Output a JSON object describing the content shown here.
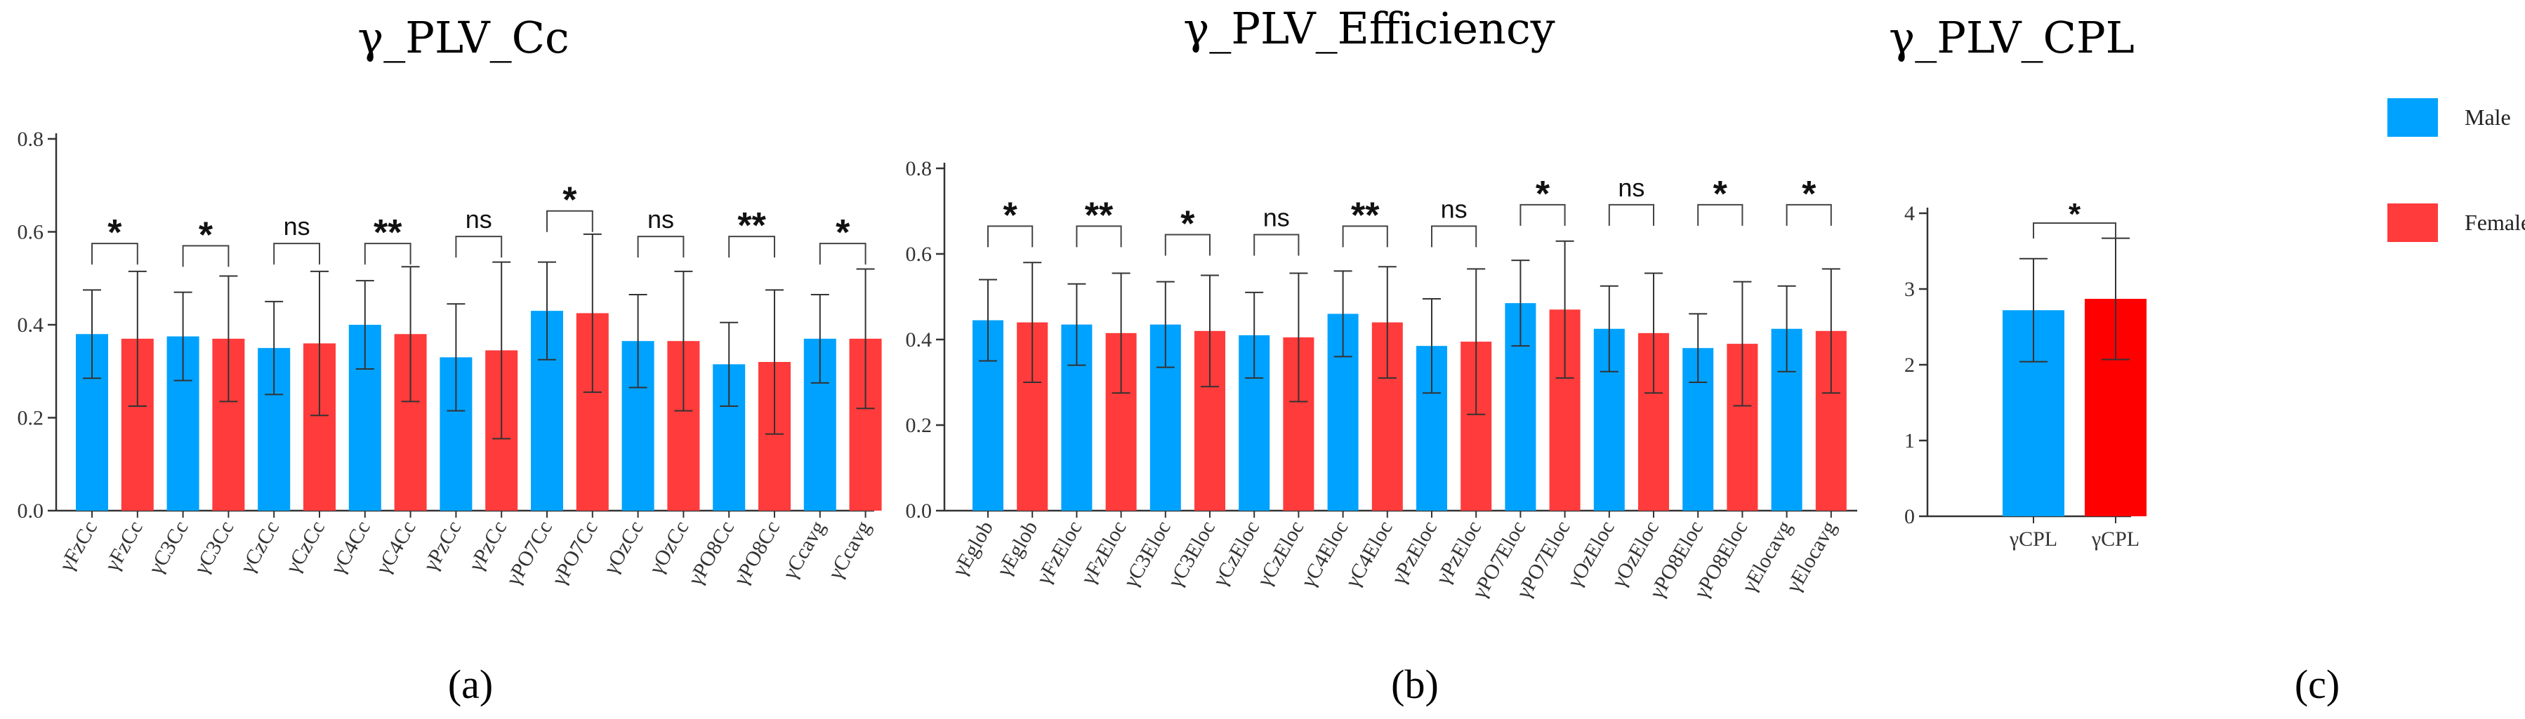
{
  "colors": {
    "male": "#00A2FF",
    "female": "#FF3B3B",
    "female_c": "#FF0000",
    "axis": "#333333",
    "bracket": "#444444"
  },
  "legend": {
    "items": [
      {
        "label": "Male",
        "color": "#00A2FF"
      },
      {
        "label": "Female",
        "color": "#FF3B3B"
      }
    ]
  },
  "chart_data": [
    {
      "type": "bar",
      "title": "γ_PLV_Cc",
      "panel_label": "(a)",
      "ylim": [
        0,
        0.8
      ],
      "yticks": [
        "0.0",
        "0.2",
        "0.4",
        "0.6",
        "0.8"
      ],
      "categories": [
        "γFzCc",
        "γFzCc",
        "γC3Cc",
        "γC3Cc",
        "γCzCc",
        "γCzCc",
        "γC4Cc",
        "γC4Cc",
        "γPzCc",
        "γPzCc",
        "γPO7Cc",
        "γPO7Cc",
        "γOzCc",
        "γOzCc",
        "γPO8Cc",
        "γPO8Cc",
        "γCcavg",
        "γCcavg"
      ],
      "groups": [
        "Male",
        "Female",
        "Male",
        "Female",
        "Male",
        "Female",
        "Male",
        "Female",
        "Male",
        "Female",
        "Male",
        "Female",
        "Male",
        "Female",
        "Male",
        "Female",
        "Male",
        "Female"
      ],
      "values": [
        0.38,
        0.37,
        0.375,
        0.37,
        0.35,
        0.36,
        0.4,
        0.38,
        0.33,
        0.345,
        0.43,
        0.425,
        0.365,
        0.365,
        0.315,
        0.32,
        0.37,
        0.37
      ],
      "errors": [
        0.095,
        0.145,
        0.095,
        0.135,
        0.1,
        0.155,
        0.095,
        0.145,
        0.115,
        0.19,
        0.105,
        0.17,
        0.1,
        0.15,
        0.09,
        0.155,
        0.095,
        0.15
      ],
      "significance": [
        "*",
        "*",
        "ns",
        "**",
        "ns",
        "*",
        "ns",
        "**",
        "*"
      ],
      "bracket_tops": [
        0.575,
        0.57,
        0.575,
        0.575,
        0.59,
        0.645,
        0.59,
        0.59,
        0.575
      ]
    },
    {
      "type": "bar",
      "title": "γ_PLV_Efficiency",
      "panel_label": "(b)",
      "ylim": [
        0,
        0.8
      ],
      "yticks": [
        "0.0",
        "0.2",
        "0.4",
        "0.6",
        "0.8"
      ],
      "categories": [
        "γEglob",
        "γEglob",
        "γFzEloc",
        "γFzEloc",
        "γC3Eloc",
        "γC3Eloc",
        "γCzEloc",
        "γCzEloc",
        "γC4Eloc",
        "γC4Eloc",
        "γPzEloc",
        "γPzEloc",
        "γPO7Eloc",
        "γPO7Eloc",
        "γOzEloc",
        "γOzEloc",
        "γPO8Eloc",
        "γPO8Eloc",
        "γElocavg",
        "γElocavg"
      ],
      "groups": [
        "Male",
        "Female",
        "Male",
        "Female",
        "Male",
        "Female",
        "Male",
        "Female",
        "Male",
        "Female",
        "Male",
        "Female",
        "Male",
        "Female",
        "Male",
        "Female",
        "Male",
        "Female",
        "Male",
        "Female"
      ],
      "values": [
        0.445,
        0.44,
        0.435,
        0.415,
        0.435,
        0.42,
        0.41,
        0.405,
        0.46,
        0.44,
        0.385,
        0.395,
        0.485,
        0.47,
        0.425,
        0.415,
        0.38,
        0.39,
        0.425,
        0.42
      ],
      "errors": [
        0.095,
        0.14,
        0.095,
        0.14,
        0.1,
        0.13,
        0.1,
        0.15,
        0.1,
        0.13,
        0.11,
        0.17,
        0.1,
        0.16,
        0.1,
        0.14,
        0.08,
        0.145,
        0.1,
        0.145
      ],
      "significance": [
        "*",
        "**",
        "*",
        "ns",
        "**",
        "ns",
        "*",
        "ns",
        "*",
        "*"
      ],
      "bracket_tops": [
        0.665,
        0.665,
        0.645,
        0.645,
        0.665,
        0.665,
        0.715,
        0.715,
        0.715,
        0.715
      ]
    },
    {
      "type": "bar",
      "title": "γ_PLV_CPL",
      "panel_label": "(c)",
      "ylim": [
        0,
        4
      ],
      "yticks": [
        "0",
        "1",
        "2",
        "3",
        "4"
      ],
      "categories": [
        "γCPL",
        "γCPL"
      ],
      "groups": [
        "Male",
        "Female"
      ],
      "values": [
        2.72,
        2.87
      ],
      "errors": [
        0.68,
        0.8
      ],
      "significance": [
        "*"
      ],
      "bracket_tops": [
        3.87
      ]
    }
  ]
}
